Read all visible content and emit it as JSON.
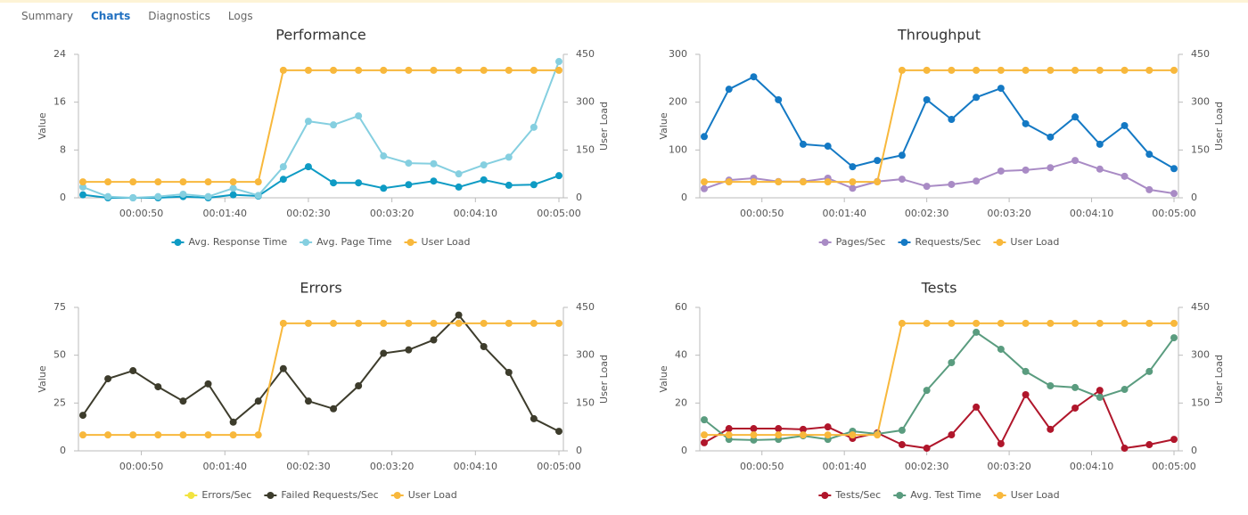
{
  "tabs": [
    "Summary",
    "Charts",
    "Diagnostics",
    "Logs"
  ],
  "selected_tab": "Charts",
  "chart_data": [
    {
      "type": "line",
      "title": "Performance",
      "y_label": "Value",
      "y2_label": "User Load",
      "legend": "bottom",
      "grid": false,
      "x": [
        15,
        30,
        45,
        60,
        75,
        90,
        105,
        120,
        135,
        150,
        165,
        180,
        195,
        210,
        225,
        240,
        255,
        270,
        285,
        300
      ],
      "xlim": [
        15,
        300
      ],
      "xticks": [
        {
          "value": 50,
          "label": "00:00:50"
        },
        {
          "value": 100,
          "label": "00:01:40"
        },
        {
          "value": 150,
          "label": "00:02:30"
        },
        {
          "value": 200,
          "label": "00:03:20"
        },
        {
          "value": 250,
          "label": "00:04:10"
        },
        {
          "value": 300,
          "label": "00:05:00"
        }
      ],
      "ylim": [
        0,
        24
      ],
      "yticks": [
        0,
        8,
        16,
        24
      ],
      "y2lim": [
        0,
        450
      ],
      "y2ticks": [
        0,
        150,
        300,
        450
      ],
      "series": [
        {
          "name": "Avg. Response Time",
          "color": "#0e9bc4",
          "values": [
            0.5,
            0,
            0,
            0,
            0.2,
            0,
            0.5,
            0.3,
            3.1,
            5.2,
            2.5,
            2.5,
            1.6,
            2.2,
            2.8,
            1.8,
            3,
            2.1,
            2.2,
            3.7
          ]
        },
        {
          "name": "Avg. Page Time",
          "color": "#85cfe0",
          "values": [
            1.8,
            0.2,
            0,
            0.2,
            0.6,
            0.2,
            1.6,
            0.4,
            5.2,
            12.8,
            12.2,
            13.7,
            7,
            5.8,
            5.7,
            4,
            5.5,
            6.8,
            11.8,
            22.8
          ]
        },
        {
          "name": "User Load",
          "color": "#f8b83c",
          "axis": "y2",
          "values": [
            50,
            50,
            50,
            50,
            50,
            50,
            50,
            50,
            400,
            400,
            400,
            400,
            400,
            400,
            400,
            400,
            400,
            400,
            400,
            400
          ]
        }
      ]
    },
    {
      "type": "line",
      "title": "Throughput",
      "y_label": "Value",
      "y2_label": "User Load",
      "legend": "bottom",
      "grid": false,
      "x": [
        15,
        30,
        45,
        60,
        75,
        90,
        105,
        120,
        135,
        150,
        165,
        180,
        195,
        210,
        225,
        240,
        255,
        270,
        285,
        300
      ],
      "xlim": [
        15,
        300
      ],
      "xticks": [
        {
          "value": 50,
          "label": "00:00:50"
        },
        {
          "value": 100,
          "label": "00:01:40"
        },
        {
          "value": 150,
          "label": "00:02:30"
        },
        {
          "value": 200,
          "label": "00:03:20"
        },
        {
          "value": 250,
          "label": "00:04:10"
        },
        {
          "value": 300,
          "label": "00:05:00"
        }
      ],
      "ylim": [
        0,
        300
      ],
      "yticks": [
        0,
        100,
        200,
        300
      ],
      "y2lim": [
        0,
        450
      ],
      "y2ticks": [
        0,
        150,
        300,
        450
      ],
      "series": [
        {
          "name": "Pages/Sec",
          "color": "#a98bc5",
          "values": [
            19,
            37,
            41,
            34,
            34,
            41,
            20,
            34,
            39,
            24,
            28,
            35,
            56,
            58,
            63,
            78,
            60,
            45,
            17,
            9
          ]
        },
        {
          "name": "Requests/Sec",
          "color": "#1479c4",
          "values": [
            128,
            227,
            253,
            205,
            112,
            108,
            65,
            78,
            89,
            205,
            164,
            210,
            229,
            155,
            127,
            169,
            112,
            151,
            91,
            61
          ]
        },
        {
          "name": "User Load",
          "color": "#f8b83c",
          "axis": "y2",
          "values": [
            50,
            50,
            50,
            50,
            50,
            50,
            50,
            50,
            400,
            400,
            400,
            400,
            400,
            400,
            400,
            400,
            400,
            400,
            400,
            400
          ]
        }
      ]
    },
    {
      "type": "line",
      "title": "Errors",
      "y_label": "Value",
      "y2_label": "User Load",
      "legend": "bottom",
      "grid": false,
      "x": [
        15,
        30,
        45,
        60,
        75,
        90,
        105,
        120,
        135,
        150,
        165,
        180,
        195,
        210,
        225,
        240,
        255,
        270,
        285,
        300
      ],
      "xlim": [
        15,
        300
      ],
      "xticks": [
        {
          "value": 50,
          "label": "00:00:50"
        },
        {
          "value": 100,
          "label": "00:01:40"
        },
        {
          "value": 150,
          "label": "00:02:30"
        },
        {
          "value": 200,
          "label": "00:03:20"
        },
        {
          "value": 250,
          "label": "00:04:10"
        },
        {
          "value": 300,
          "label": "00:05:00"
        }
      ],
      "ylim": [
        0,
        75
      ],
      "yticks": [
        0,
        25,
        50,
        75
      ],
      "y2lim": [
        0,
        450
      ],
      "y2ticks": [
        0,
        150,
        300,
        450
      ],
      "series": [
        {
          "name": "Errors/Sec",
          "color": "#f2e340",
          "values": [
            null,
            null,
            null,
            null,
            null,
            null,
            null,
            null,
            null,
            null,
            null,
            null,
            null,
            null,
            null,
            null,
            null,
            null,
            null,
            null
          ]
        },
        {
          "name": "Failed Requests/Sec",
          "color": "#3d3c2c",
          "values": [
            18.6,
            37.7,
            41.9,
            33.5,
            26,
            35,
            15,
            26,
            43,
            26,
            22,
            34,
            51,
            52.8,
            58,
            71,
            54.5,
            41,
            16.8,
            10.2
          ]
        },
        {
          "name": "User Load",
          "color": "#f8b83c",
          "axis": "y2",
          "values": [
            50,
            50,
            50,
            50,
            50,
            50,
            50,
            50,
            400,
            400,
            400,
            400,
            400,
            400,
            400,
            400,
            400,
            400,
            400,
            400
          ]
        }
      ]
    },
    {
      "type": "line",
      "title": "Tests",
      "y_label": "Value",
      "y2_label": "User Load",
      "legend": "bottom",
      "grid": false,
      "x": [
        15,
        30,
        45,
        60,
        75,
        90,
        105,
        120,
        135,
        150,
        165,
        180,
        195,
        210,
        225,
        240,
        255,
        270,
        285,
        300
      ],
      "xlim": [
        15,
        300
      ],
      "xticks": [
        {
          "value": 50,
          "label": "00:00:50"
        },
        {
          "value": 100,
          "label": "00:01:40"
        },
        {
          "value": 150,
          "label": "00:02:30"
        },
        {
          "value": 200,
          "label": "00:03:20"
        },
        {
          "value": 250,
          "label": "00:04:10"
        },
        {
          "value": 300,
          "label": "00:05:00"
        }
      ],
      "ylim": [
        0,
        60
      ],
      "yticks": [
        0,
        20,
        40,
        60
      ],
      "y2lim": [
        0,
        450
      ],
      "y2ticks": [
        0,
        150,
        300,
        450
      ],
      "series": [
        {
          "name": "Tests/Sec",
          "color": "#b0162b",
          "values": [
            3.4,
            9.3,
            9.3,
            9.3,
            9,
            10,
            5.2,
            7.5,
            2.6,
            1.1,
            6.7,
            18.3,
            3,
            23.5,
            9,
            17.9,
            25.3,
            1.1,
            2.6,
            4.8
          ]
        },
        {
          "name": "Avg. Test Time",
          "color": "#5a9c7f",
          "values": [
            13,
            4.8,
            4.5,
            4.8,
            6.3,
            4.8,
            8.2,
            7.1,
            8.6,
            25.3,
            36.9,
            49.6,
            42.5,
            33.2,
            27.2,
            26.5,
            22.4,
            25.7,
            33.2,
            47.3
          ]
        },
        {
          "name": "User Load",
          "color": "#f8b83c",
          "axis": "y2",
          "values": [
            50,
            50,
            50,
            50,
            50,
            50,
            50,
            50,
            400,
            400,
            400,
            400,
            400,
            400,
            400,
            400,
            400,
            400,
            400,
            400
          ]
        }
      ]
    }
  ]
}
